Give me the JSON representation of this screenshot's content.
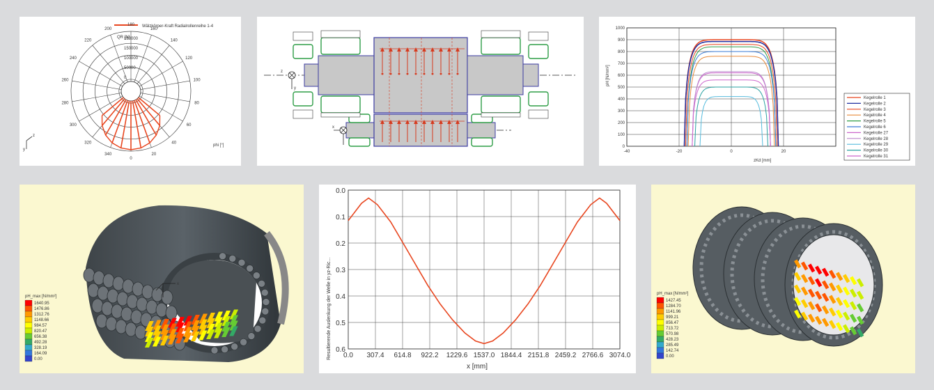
{
  "polar_chart": {
    "legend": "Wälzkörper-Kraft Radialrollenreihe 1-4",
    "radial_label": "QR [N]",
    "radial_ticks": [
      "180000",
      "150000",
      "100000",
      "50000",
      "0"
    ],
    "angle_labels": [
      "0",
      "20",
      "40",
      "60",
      "80",
      "100",
      "120",
      "140",
      "160",
      "180",
      "200",
      "220",
      "240",
      "260",
      "280",
      "300",
      "320",
      "340"
    ],
    "axis_label": "phi [°]",
    "coord_z": "z",
    "coord_y": "y",
    "colors": {
      "series": "#e8451e",
      "grid": "#444444"
    }
  },
  "shaft_diagram": {
    "labels": {
      "z": "z",
      "y": "y",
      "x": "x"
    },
    "colors": {
      "shaft": "#c8c8c8",
      "outline": "#3a3aa0",
      "force": "#d63a1e",
      "bearing": "#2e9d46"
    }
  },
  "pressure_chart": {
    "ylabel": "pH [N/mm²]",
    "xlabel": "zKd [mm]",
    "yticks": [
      "1000",
      "900",
      "800",
      "700",
      "600",
      "500",
      "400",
      "300",
      "200",
      "100",
      "0"
    ],
    "xticks": [
      "-40",
      "-20",
      "0",
      "20"
    ],
    "legend": [
      "Kegelrolle 1",
      "Kegelrolle 2",
      "Kegelrolle 3",
      "Kegelrolle 4",
      "Kegelrolle 5",
      "Kegelrolle 6",
      "Kegelrolle 27",
      "Kegelrolle 28",
      "Kegelrolle 29",
      "Kegelrolle 30",
      "Kegelrolle 31"
    ]
  },
  "bearing_3d_left": {
    "scale_title": "pH_max [N/mm²]",
    "scale_values": [
      "1640.95",
      "1476.86",
      "1312.76",
      "1148.66",
      "984.57",
      "820.47",
      "656.38",
      "492.28",
      "328.19",
      "164.09",
      "0.00"
    ],
    "scale_colors": [
      "#ff0000",
      "#ff5500",
      "#ff9900",
      "#ffcc00",
      "#ffff00",
      "#ccee00",
      "#66cc33",
      "#33aa66",
      "#33aacc",
      "#3377dd",
      "#3344cc"
    ],
    "axis_label": "x"
  },
  "bearing_3d_right": {
    "scale_title": "pH_max [N/mm²]",
    "scale_values": [
      "1427.45",
      "1284.70",
      "1141.96",
      "999.21",
      "856.47",
      "713.72",
      "570.98",
      "428.23",
      "285.49",
      "142.74",
      "0.00"
    ],
    "scale_colors": [
      "#ff0000",
      "#ff5500",
      "#ff9900",
      "#ffcc00",
      "#ffff00",
      "#ccee00",
      "#66cc33",
      "#33aa66",
      "#33aacc",
      "#3377dd",
      "#3344cc"
    ]
  },
  "chart_data": [
    {
      "type": "line",
      "title": "",
      "xlabel": "x [mm]",
      "ylabel": "Resultierende Auslenkung der Welle in yz-Ric...",
      "x_ticks": [
        "0.0",
        "307.4",
        "614.8",
        "922.2",
        "1229.6",
        "1537.0",
        "1844.4",
        "2151.8",
        "2459.2",
        "2766.6",
        "3074.0"
      ],
      "y_ticks": [
        "0.0",
        "0.1",
        "0.2",
        "0.3",
        "0.4",
        "0.5",
        "0.6"
      ],
      "xlim": [
        0,
        3074
      ],
      "ylim": [
        0,
        0.6
      ],
      "y_inverted": true,
      "grid": true,
      "line_color": "#e8451e",
      "x": [
        0,
        150,
        230,
        330,
        480,
        620,
        760,
        900,
        1040,
        1180,
        1320,
        1440,
        1537,
        1634,
        1754,
        1894,
        2034,
        2174,
        2314,
        2454,
        2594,
        2744,
        2844,
        2924,
        3074
      ],
      "y": [
        0.115,
        0.05,
        0.03,
        0.055,
        0.12,
        0.2,
        0.28,
        0.36,
        0.43,
        0.49,
        0.54,
        0.57,
        0.58,
        0.57,
        0.54,
        0.49,
        0.43,
        0.36,
        0.28,
        0.2,
        0.12,
        0.055,
        0.03,
        0.05,
        0.115
      ]
    }
  ]
}
